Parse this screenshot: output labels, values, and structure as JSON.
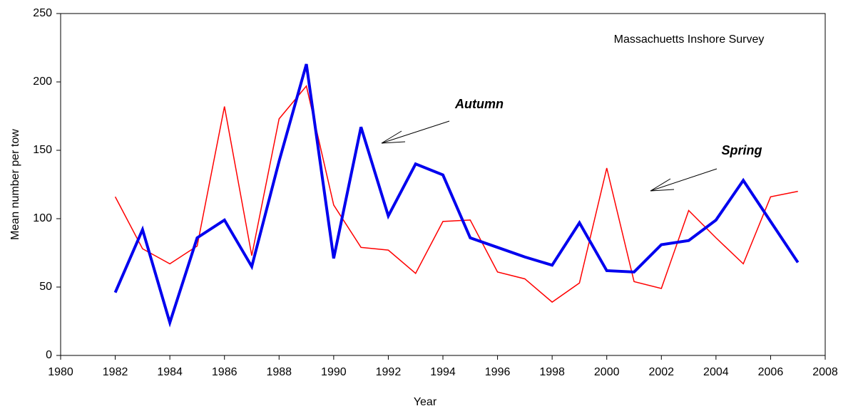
{
  "chart_data": {
    "type": "line",
    "annotation": "Massachuetts Inshore Survey",
    "x_label": "Year",
    "y_label": "Mean number per tow",
    "x": [
      1982,
      1983,
      1984,
      1985,
      1986,
      1987,
      1988,
      1989,
      1990,
      1991,
      1992,
      1993,
      1994,
      1995,
      1996,
      1997,
      1998,
      1999,
      2000,
      2001,
      2002,
      2003,
      2004,
      2005,
      2006,
      2007
    ],
    "series": [
      {
        "name": "Spring",
        "color": "#ff0000",
        "width": 1.5,
        "values": [
          116,
          78,
          67,
          80,
          182,
          73,
          173,
          197,
          110,
          79,
          77,
          60,
          98,
          99,
          61,
          56,
          39,
          53,
          137,
          54,
          49,
          106,
          86,
          67,
          116,
          120
        ]
      },
      {
        "name": "Autumn",
        "color": "#0000ee",
        "width": 4,
        "values": [
          46,
          92,
          24,
          86,
          99,
          65,
          142,
          213,
          71,
          167,
          102,
          140,
          132,
          86,
          79,
          72,
          66,
          97,
          62,
          61,
          81,
          84,
          99,
          128,
          98,
          68
        ]
      }
    ],
    "xlim": [
      1980,
      2008
    ],
    "xticks": [
      1980,
      1982,
      1984,
      1986,
      1988,
      1990,
      1992,
      1994,
      1996,
      1998,
      2000,
      2002,
      2004,
      2006,
      2008
    ],
    "ylim": [
      0,
      250
    ],
    "yticks": [
      0,
      50,
      100,
      150,
      200,
      250
    ]
  }
}
